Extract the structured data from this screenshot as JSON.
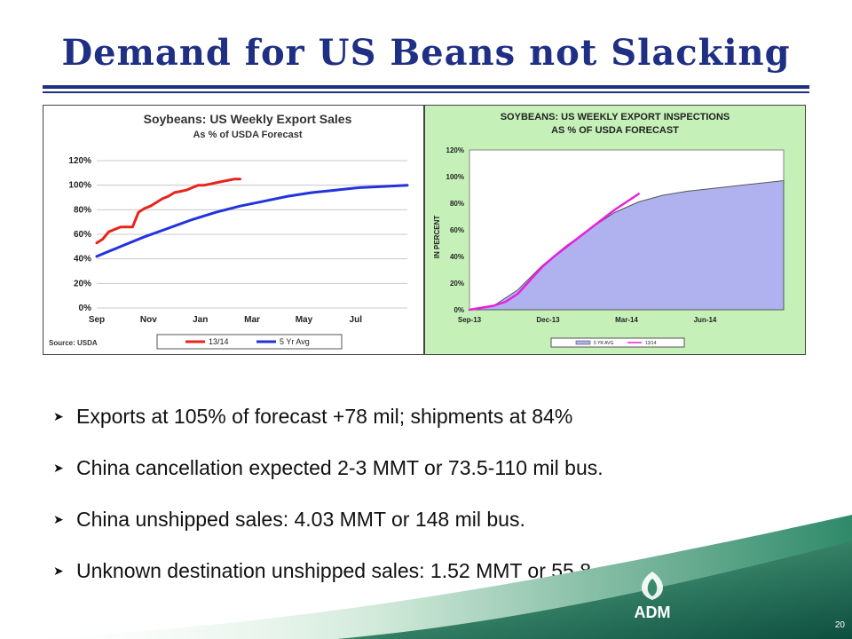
{
  "slide": {
    "title": "Demand for US Beans not Slacking",
    "page_number": "20",
    "logo_text": "ADM"
  },
  "bullets": [
    "Exports at 105% of forecast +78 mil; shipments at 84%",
    "China cancellation expected 2-3 MMT or 73.5-110 mil bus.",
    "China unshipped sales: 4.03 MMT or 148 mil bus.",
    "Unknown destination unshipped sales: 1.52 MMT or 55.8"
  ],
  "colors": {
    "title": "#1f2f84",
    "red_series": "#e8241c",
    "blue_series": "#2233dd",
    "magenta_series": "#e820e0",
    "area_fill": "#b0b2f0",
    "chart2_bg": "#c5f0b8"
  },
  "chart_data": [
    {
      "type": "line",
      "title": "Soybeans: US Weekly Export Sales",
      "subtitle": "As % of USDA Forecast",
      "source": "Source: USDA",
      "x_ticks": [
        "Sep",
        "Nov",
        "Jan",
        "Mar",
        "May",
        "Jul"
      ],
      "y_ticks": [
        "0%",
        "20%",
        "40%",
        "60%",
        "80%",
        "100%",
        "120%"
      ],
      "ylim": [
        0,
        120
      ],
      "xlim": [
        0,
        52
      ],
      "grid": true,
      "legend_position": "bottom",
      "series": [
        {
          "name": "13/14",
          "color": "#e8241c",
          "x": [
            0,
            1,
            2,
            3,
            4,
            5,
            6,
            7,
            8,
            9,
            10,
            11,
            12,
            13,
            14,
            15,
            16,
            17,
            18,
            19,
            20,
            21,
            22,
            23,
            24
          ],
          "y": [
            53,
            56,
            62,
            64,
            66,
            66,
            66,
            78,
            81,
            83,
            86,
            89,
            91,
            94,
            95,
            96,
            98,
            100,
            100,
            101,
            102,
            103,
            104,
            105,
            105
          ]
        },
        {
          "name": "5 Yr Avg",
          "color": "#2233dd",
          "x": [
            0,
            4,
            8,
            12,
            16,
            20,
            24,
            28,
            32,
            36,
            40,
            44,
            48,
            52
          ],
          "y": [
            42,
            50,
            58,
            65,
            72,
            78,
            83,
            87,
            91,
            94,
            96,
            98,
            99,
            100
          ]
        }
      ]
    },
    {
      "type": "area",
      "title": "SOYBEANS: US WEEKLY EXPORT INSPECTIONS",
      "subtitle": "AS % OF USDA FORECAST",
      "ylabel": "IN PERCENT",
      "x_ticks": [
        "Sep-13",
        "Dec-13",
        "Mar-14",
        "Jun-14"
      ],
      "y_ticks": [
        "0%",
        "20%",
        "40%",
        "60%",
        "80%",
        "100%",
        "120%"
      ],
      "ylim": [
        0,
        120
      ],
      "xlim": [
        0,
        52
      ],
      "legend_position": "bottom",
      "series": [
        {
          "name": "5 YR AVG",
          "color": "#b0b2f0",
          "x": [
            0,
            4,
            8,
            12,
            16,
            20,
            24,
            28,
            32,
            36,
            40,
            44,
            48,
            52
          ],
          "y": [
            0,
            3,
            15,
            33,
            48,
            61,
            73,
            81,
            86,
            89,
            91,
            93,
            95,
            97
          ]
        },
        {
          "name": "13/14",
          "color": "#e820e0",
          "x": [
            0,
            4,
            6,
            8,
            10,
            12,
            14,
            16,
            18,
            20,
            22,
            24,
            26,
            28
          ],
          "y": [
            0,
            3,
            6,
            12,
            22,
            32,
            40,
            47,
            54,
            61,
            68,
            75,
            81,
            87
          ]
        }
      ]
    }
  ]
}
